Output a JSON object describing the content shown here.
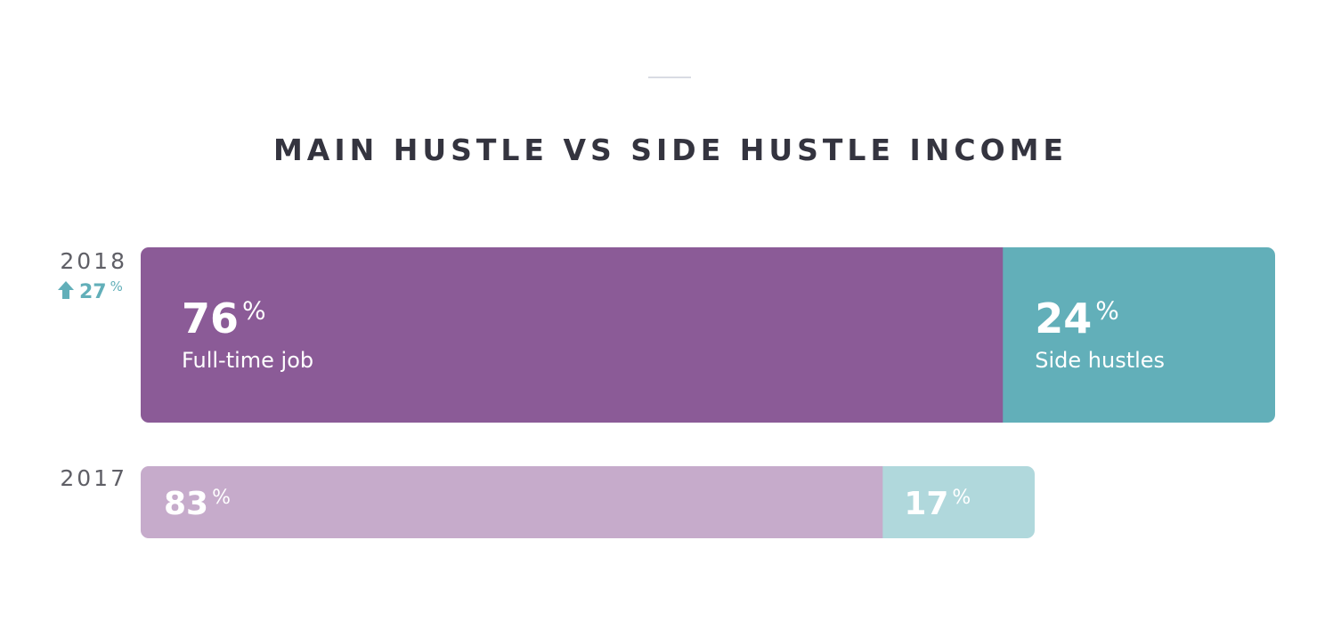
{
  "chart_data": {
    "type": "stacked-bar",
    "title": "MAIN HUSTLE VS SIDE HUSTLE INCOME",
    "categories": [
      "2018",
      "2017"
    ],
    "series": [
      {
        "name": "Full-time job",
        "colors": [
          "#8b5b97",
          "#c6abcb"
        ],
        "values": [
          76,
          83
        ],
        "value_labels": [
          "76%",
          "83%"
        ]
      },
      {
        "name": "Side hustles",
        "colors": [
          "#62afb9",
          "#b0d8dc"
        ],
        "values": [
          24,
          17
        ],
        "value_labels": [
          "24%",
          "17%"
        ]
      }
    ],
    "annotations": [
      {
        "text": "27%"
      }
    ]
  }
}
